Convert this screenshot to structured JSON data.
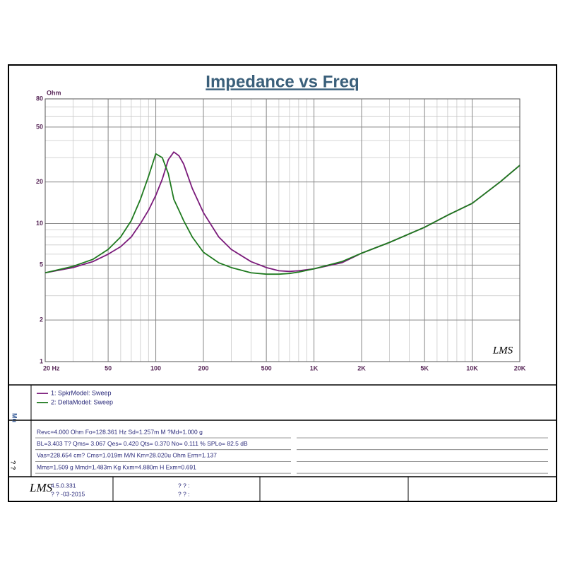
{
  "chart_data": {
    "type": "line",
    "title": "Impedance vs Freq",
    "y_label": "Ohm",
    "log_x": true,
    "log_y": true,
    "grid": true,
    "xlim": [
      20,
      20000
    ],
    "ylim": [
      1,
      80
    ],
    "xticks": [
      {
        "value": 20,
        "label": "20  Hz"
      },
      50,
      100,
      200,
      500,
      {
        "value": 1000,
        "label": "1K"
      },
      {
        "value": 2000,
        "label": "2K"
      },
      {
        "value": 5000,
        "label": "5K"
      },
      {
        "value": 10000,
        "label": "10K"
      },
      {
        "value": 20000,
        "label": "20K"
      }
    ],
    "yticks": [
      1,
      2,
      5,
      10,
      20,
      50,
      80
    ],
    "x": [
      20,
      30,
      40,
      50,
      60,
      70,
      80,
      90,
      100,
      110,
      120,
      130,
      140,
      150,
      170,
      200,
      250,
      300,
      400,
      500,
      600,
      700,
      800,
      1000,
      1500,
      2000,
      3000,
      5000,
      7000,
      10000,
      15000,
      20000
    ],
    "series": [
      {
        "name": "1: SpkrModel: Sweep",
        "color": "#7a1a7a",
        "values": [
          4.4,
          4.8,
          5.3,
          6,
          6.8,
          8,
          10,
          12.5,
          16,
          21,
          29,
          33,
          31,
          27,
          18,
          12,
          8,
          6.5,
          5.3,
          4.8,
          4.55,
          4.5,
          4.55,
          4.7,
          5.2,
          6.1,
          7.3,
          9.4,
          11.5,
          14,
          20,
          26.4
        ]
      },
      {
        "name": "2: DeltaModel: Sweep",
        "color": "#1f7a1f",
        "values": [
          4.4,
          4.9,
          5.5,
          6.5,
          8,
          10.5,
          15,
          22,
          32,
          30,
          23,
          15,
          12.5,
          10.5,
          8,
          6.2,
          5.2,
          4.8,
          4.4,
          4.3,
          4.3,
          4.35,
          4.45,
          4.7,
          5.3,
          6.1,
          7.3,
          9.4,
          11.5,
          14,
          20,
          26.4
        ]
      }
    ],
    "watermark": "LMS"
  },
  "panel": {
    "side_labels": [
      "Mu",
      "? ?"
    ],
    "params": [
      "Revc=4.000 Ohm  Fo=128.361 Hz  Sd=1.257m M ?Md=1.000 g",
      "BL=3.403 T?   Qms= 3.067  Qes= 0.420  Qts= 0.370  No= 0.111 %  SPLo= 82.5 dB",
      "Vas=228.654 cm? Cms=1.019m M/N  Km=28.020u Ohm  Erm=1.137",
      "Mms=1.509 g  Mmd=1.483m Kg  Kxm=4.880m H  Exm=0.691"
    ],
    "footer": {
      "logo": "LMS",
      "version": "4.5.0.331",
      "date": "? ? -03-2015",
      "field1": "? ? :",
      "field2": "? ? :"
    }
  }
}
